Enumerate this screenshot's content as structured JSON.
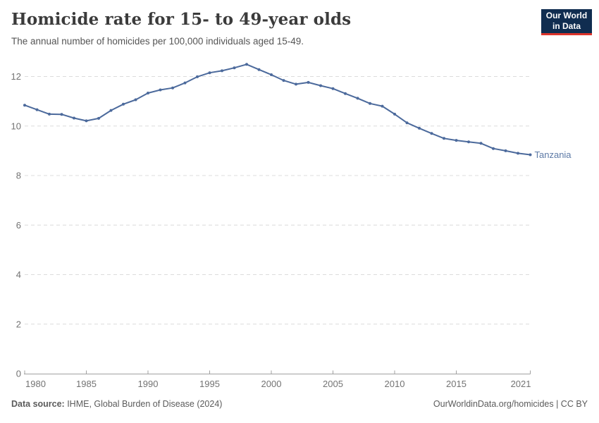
{
  "header": {
    "title": "Homicide rate for 15- to 49-year olds",
    "subtitle": "The annual number of homicides per 100,000 individuals aged 15-49.",
    "logo": {
      "line1": "Our World",
      "line2": "in Data"
    }
  },
  "footer": {
    "source_label": "Data source:",
    "source_text": " IHME, Global Burden of Disease (2024)",
    "right_text": "OurWorldinData.org/homicides | CC BY"
  },
  "colors": {
    "line": "#4c6a9c",
    "entity_label": "#5d7aa6",
    "grid": "#dcdcdc",
    "axis": "#a0a0a0",
    "tick_label": "#737373",
    "logo_bg": "#102d50",
    "logo_red": "#dc342b",
    "title": "#3b3b3b",
    "subtitle": "#555555",
    "footer": "#5b5b5b"
  },
  "chart_data": {
    "type": "line",
    "title": "Homicide rate for 15- to 49-year olds",
    "subtitle": "The annual number of homicides per 100,000 individuals aged 15-49.",
    "xlabel": "",
    "ylabel": "",
    "xlim": [
      1980,
      2021
    ],
    "ylim": [
      0,
      12.8
    ],
    "grid": "horizontal-dashed",
    "legend": "end-of-line-label",
    "xticks": [
      1980,
      1985,
      1990,
      1995,
      2000,
      2005,
      2010,
      2015,
      2021
    ],
    "yticks": [
      0,
      2,
      4,
      6,
      8,
      10,
      12
    ],
    "series": [
      {
        "name": "Tanzania",
        "color": "#4c6a9c",
        "x": [
          1980,
          1981,
          1982,
          1983,
          1984,
          1985,
          1986,
          1987,
          1988,
          1989,
          1990,
          1991,
          1992,
          1993,
          1994,
          1995,
          1996,
          1997,
          1998,
          1999,
          2000,
          2001,
          2002,
          2003,
          2004,
          2005,
          2006,
          2007,
          2008,
          2009,
          2010,
          2011,
          2012,
          2013,
          2014,
          2015,
          2016,
          2017,
          2018,
          2019,
          2020,
          2021
        ],
        "values": [
          10.84,
          10.66,
          10.48,
          10.47,
          10.32,
          10.21,
          10.31,
          10.63,
          10.88,
          11.06,
          11.33,
          11.46,
          11.54,
          11.74,
          11.99,
          12.15,
          12.23,
          12.35,
          12.49,
          12.28,
          12.07,
          11.84,
          11.69,
          11.76,
          11.63,
          11.51,
          11.31,
          11.12,
          10.91,
          10.8,
          10.48,
          10.13,
          9.91,
          9.7,
          9.5,
          9.42,
          9.36,
          9.3,
          9.09,
          9.0,
          8.9,
          8.84
        ]
      }
    ]
  }
}
